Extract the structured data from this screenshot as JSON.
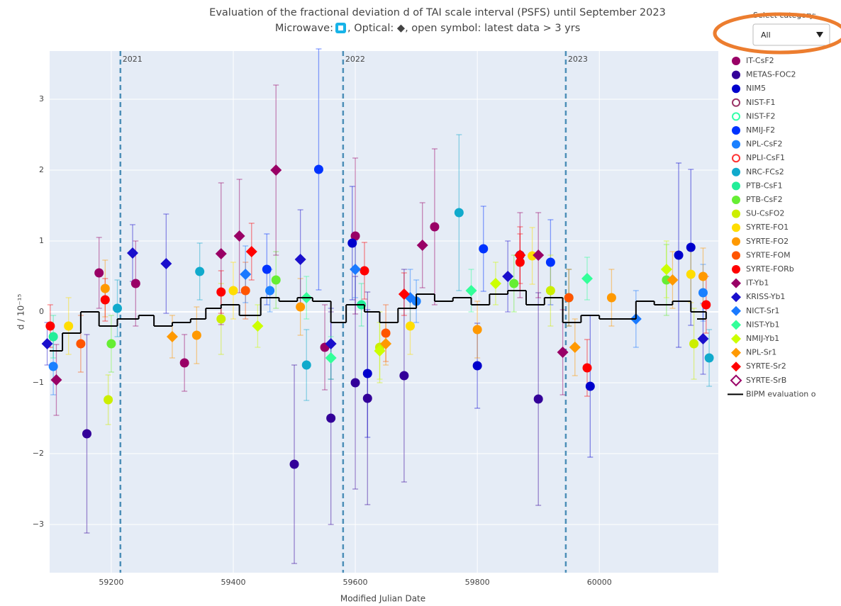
{
  "chart_data": {
    "type": "scatter",
    "title": "Evaluation of the fractional deviation d of TAI scale interval (PSFS) until September 2023",
    "subtitle_left": "Microwave: ",
    "subtitle_right": ", Optical: ◆, open symbol: latest data > 3 yrs",
    "x_label": "Modified Julian Date",
    "y_label": "d / 10⁻¹⁵",
    "dropdown_label": "Select category:",
    "dropdown_value": "All",
    "xlim": [
      59099,
      60195
    ],
    "ylim": [
      -3.68,
      3.68
    ],
    "xticks": [
      59200,
      59400,
      59600,
      59800,
      60000
    ],
    "yticks": [
      {
        "value": -3,
        "label": "−3"
      },
      {
        "value": -2,
        "label": "−2"
      },
      {
        "value": -1,
        "label": "−1"
      },
      0,
      1,
      2,
      3
    ],
    "grid": true,
    "vlines": [
      {
        "x": 59215,
        "label": "2021"
      },
      {
        "x": 59580,
        "label": "2022"
      },
      {
        "x": 59945,
        "label": "2023"
      }
    ],
    "series": [
      {
        "name": "IT-CsF2",
        "color": "#990066",
        "symbol": "circle",
        "open": false,
        "x": [
          59180,
          59240,
          59320,
          59550,
          59600,
          59730,
          59870
        ],
        "values": [
          0.55,
          0.4,
          -0.72,
          -0.5,
          1.07,
          1.2,
          0.8
        ],
        "errors": [
          0.5,
          0.6,
          0.4,
          0.6,
          1.1,
          1.1,
          0.6
        ]
      },
      {
        "name": "METAS-FOC2",
        "color": "#330099",
        "symbol": "circle",
        "open": false,
        "x": [
          59160,
          59500,
          59560,
          59600,
          59620,
          59680,
          59900
        ],
        "values": [
          -1.72,
          -2.15,
          -1.5,
          -1.0,
          -1.22,
          -0.9,
          -1.23
        ],
        "errors": [
          1.4,
          1.4,
          1.5,
          1.5,
          1.5,
          1.5,
          1.5
        ]
      },
      {
        "name": "NIM5",
        "color": "#0000cc",
        "symbol": "circle",
        "open": false,
        "x": [
          59595,
          59620,
          59800,
          59985,
          60130,
          60150
        ],
        "values": [
          0.97,
          -0.87,
          -0.76,
          -1.05,
          0.8,
          0.91
        ],
        "errors": [
          0.8,
          0.9,
          0.6,
          1.0,
          1.3,
          1.1
        ]
      },
      {
        "name": "NIST-F1",
        "color": "#993366",
        "symbol": "circle",
        "open": true,
        "x": [],
        "values": [],
        "errors": []
      },
      {
        "name": "NIST-F2",
        "color": "#33ffaa",
        "symbol": "circle",
        "open": true,
        "x": [],
        "values": [],
        "errors": []
      },
      {
        "name": "NMIJ-F2",
        "color": "#0033ff",
        "symbol": "circle",
        "open": false,
        "x": [
          59455,
          59540,
          59810,
          59920
        ],
        "values": [
          0.6,
          2.01,
          0.89,
          0.7
        ],
        "errors": [
          0.5,
          1.7,
          0.6,
          0.6
        ]
      },
      {
        "name": "NPL-CsF2",
        "color": "#1a80ff",
        "symbol": "circle",
        "open": false,
        "x": [
          59105,
          59460,
          59700,
          60170
        ],
        "values": [
          -0.77,
          0.3,
          0.15,
          0.27
        ],
        "errors": [
          0.4,
          0.3,
          0.3,
          0.4
        ]
      },
      {
        "name": "NPLI-CsF1",
        "color": "#ff3333",
        "symbol": "circle",
        "open": true,
        "x": [],
        "values": [],
        "errors": []
      },
      {
        "name": "NRC-FCs2",
        "color": "#11aacc",
        "symbol": "circle",
        "open": false,
        "x": [
          59210,
          59345,
          59520,
          59770,
          60180
        ],
        "values": [
          0.05,
          0.57,
          -0.75,
          1.4,
          -0.65
        ],
        "errors": [
          0.4,
          0.4,
          0.5,
          1.1,
          0.4
        ]
      },
      {
        "name": "PTB-CsF1",
        "color": "#22ee99",
        "symbol": "circle",
        "open": false,
        "x": [
          59105,
          59610,
          59950
        ],
        "values": [
          -0.35,
          0.1,
          0.2
        ],
        "errors": [
          0.3,
          0.3,
          0.4
        ]
      },
      {
        "name": "PTB-CsF2",
        "color": "#66ee33",
        "symbol": "circle",
        "open": false,
        "x": [
          59200,
          59470,
          59860,
          60110
        ],
        "values": [
          -0.45,
          0.45,
          0.4,
          0.45
        ],
        "errors": [
          0.4,
          0.4,
          0.4,
          0.5
        ]
      },
      {
        "name": "SU-CsFO2",
        "color": "#ccee00",
        "symbol": "circle",
        "open": false,
        "x": [
          59195,
          59380,
          59640,
          59920,
          60155
        ],
        "values": [
          -1.24,
          -0.1,
          -0.5,
          0.3,
          -0.45
        ],
        "errors": [
          0.35,
          0.5,
          0.5,
          0.5,
          0.5
        ]
      },
      {
        "name": "SYRTE-FO1",
        "color": "#ffdd00",
        "symbol": "circle",
        "open": false,
        "x": [
          59130,
          59400,
          59690,
          59890,
          60150
        ],
        "values": [
          -0.2,
          0.3,
          -0.2,
          0.79,
          0.53
        ],
        "errors": [
          0.4,
          0.4,
          0.4,
          0.4,
          0.4
        ]
      },
      {
        "name": "SYRTE-FO2",
        "color": "#ff9900",
        "symbol": "circle",
        "open": false,
        "x": [
          59190,
          59340,
          59510,
          59800,
          60020,
          60170
        ],
        "values": [
          0.33,
          -0.33,
          0.07,
          -0.25,
          0.2,
          0.5
        ],
        "errors": [
          0.4,
          0.4,
          0.4,
          0.4,
          0.4,
          0.4
        ]
      },
      {
        "name": "SYRTE-FOM",
        "color": "#ff5500",
        "symbol": "circle",
        "open": false,
        "x": [
          59150,
          59420,
          59650,
          59950
        ],
        "values": [
          -0.45,
          0.3,
          -0.3,
          0.2
        ],
        "errors": [
          0.4,
          0.4,
          0.4,
          0.4
        ]
      },
      {
        "name": "SYRTE-FORb",
        "color": "#ff0000",
        "symbol": "circle",
        "open": false,
        "x": [
          59100,
          59190,
          59380,
          59615,
          59870,
          59980,
          60175
        ],
        "values": [
          -0.2,
          0.17,
          0.28,
          0.58,
          0.7,
          -0.79,
          0.1
        ],
        "errors": [
          0.3,
          0.3,
          0.3,
          0.4,
          0.4,
          0.4,
          0.4
        ]
      },
      {
        "name": "IT-Yb1",
        "color": "#990066",
        "symbol": "diamond",
        "open": false,
        "x": [
          59110,
          59380,
          59410,
          59470,
          59710,
          59900,
          59940
        ],
        "values": [
          -0.96,
          0.82,
          1.07,
          2.0,
          0.94,
          0.8,
          -0.57
        ],
        "errors": [
          0.5,
          1.0,
          0.8,
          1.2,
          0.6,
          0.6,
          0.6
        ]
      },
      {
        "name": "KRISS-Yb1",
        "color": "#1a0fcc",
        "symbol": "diamond",
        "open": false,
        "x": [
          59095,
          59235,
          59290,
          59510,
          59560,
          59850,
          60170
        ],
        "values": [
          -0.45,
          0.83,
          0.68,
          0.74,
          -0.45,
          0.5,
          -0.38
        ],
        "errors": [
          0.3,
          0.4,
          0.7,
          0.7,
          0.5,
          0.5,
          0.5
        ]
      },
      {
        "name": "NICT-Sr1",
        "color": "#1a7aff",
        "symbol": "diamond",
        "open": false,
        "x": [
          59420,
          59600,
          59690,
          60060
        ],
        "values": [
          0.53,
          0.6,
          0.2,
          -0.1
        ],
        "errors": [
          0.4,
          0.4,
          0.4,
          0.4
        ]
      },
      {
        "name": "NIST-Yb1",
        "color": "#33ff99",
        "symbol": "diamond",
        "open": false,
        "x": [
          59520,
          59560,
          59790,
          59980
        ],
        "values": [
          0.2,
          -0.65,
          0.3,
          0.47
        ],
        "errors": [
          0.3,
          0.3,
          0.3,
          0.3
        ]
      },
      {
        "name": "NMIJ-Yb1",
        "color": "#ccff00",
        "symbol": "diamond",
        "open": false,
        "x": [
          59440,
          59640,
          59830,
          60110
        ],
        "values": [
          -0.2,
          -0.55,
          0.4,
          0.6
        ],
        "errors": [
          0.3,
          0.4,
          0.3,
          0.4
        ]
      },
      {
        "name": "NPL-Sr1",
        "color": "#ff9900",
        "symbol": "diamond",
        "open": false,
        "x": [
          59300,
          59650,
          59960,
          60120
        ],
        "values": [
          -0.35,
          -0.45,
          -0.5,
          0.45
        ],
        "errors": [
          0.3,
          0.3,
          0.4,
          0.4
        ]
      },
      {
        "name": "SYRTE-Sr2",
        "color": "#ff0000",
        "symbol": "diamond",
        "open": false,
        "x": [
          59430,
          59680,
          59870
        ],
        "values": [
          0.85,
          0.25,
          0.8
        ],
        "errors": [
          0.4,
          0.3,
          0.4
        ]
      },
      {
        "name": "SYRTE-SrB",
        "color": "#990066",
        "symbol": "diamond",
        "open": true,
        "x": [],
        "values": [],
        "errors": []
      }
    ],
    "step_line": {
      "name": "BIPM evaluation o",
      "color": "#000000",
      "x": [
        59099,
        59120,
        59150,
        59180,
        59210,
        59245,
        59270,
        59300,
        59330,
        59355,
        59380,
        59410,
        59445,
        59475,
        59505,
        59530,
        59560,
        59585,
        59615,
        59640,
        59670,
        59700,
        59730,
        59760,
        59790,
        59820,
        59850,
        59880,
        59910,
        59940,
        59970,
        60000,
        60030,
        60060,
        60090,
        60120,
        60150,
        60175
      ],
      "values": [
        -0.55,
        -0.3,
        0.0,
        -0.2,
        -0.1,
        -0.05,
        -0.2,
        -0.15,
        -0.1,
        0.05,
        0.1,
        -0.05,
        0.2,
        0.15,
        0.2,
        0.15,
        -0.15,
        0.1,
        0.0,
        -0.15,
        0.05,
        0.25,
        0.15,
        0.2,
        0.1,
        0.25,
        0.3,
        0.1,
        0.2,
        -0.15,
        -0.05,
        -0.1,
        -0.1,
        0.15,
        0.1,
        0.15,
        0.0,
        -0.1
      ]
    }
  }
}
